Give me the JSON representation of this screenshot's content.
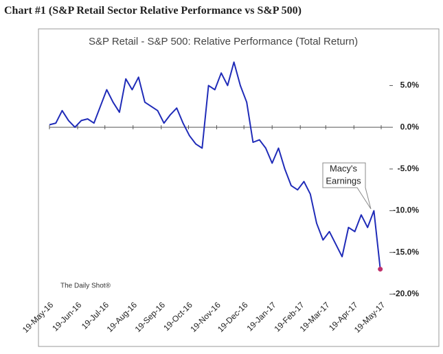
{
  "header": {
    "title": "Chart #1 (S&P Retail Sector Relative Performance vs S&P 500)"
  },
  "chart_data": {
    "type": "line",
    "title": "S&P Retail - S&P 500:  Relative Performance (Total Return)",
    "source": "The Daily Shot®",
    "annotation": [
      "Macy's",
      "Earnings"
    ],
    "x": [
      "2016-05-19",
      "2016-05-26",
      "2016-06-02",
      "2016-06-09",
      "2016-06-16",
      "2016-06-23",
      "2016-06-30",
      "2016-07-07",
      "2016-07-14",
      "2016-07-21",
      "2016-07-28",
      "2016-08-04",
      "2016-08-11",
      "2016-08-18",
      "2016-08-25",
      "2016-09-01",
      "2016-09-08",
      "2016-09-15",
      "2016-09-22",
      "2016-09-29",
      "2016-10-06",
      "2016-10-13",
      "2016-10-20",
      "2016-10-27",
      "2016-11-03",
      "2016-11-10",
      "2016-11-17",
      "2016-11-24",
      "2016-12-01",
      "2016-12-08",
      "2016-12-15",
      "2016-12-22",
      "2016-12-29",
      "2017-01-05",
      "2017-01-12",
      "2017-01-19",
      "2017-01-26",
      "2017-02-02",
      "2017-02-09",
      "2017-02-16",
      "2017-02-23",
      "2017-03-02",
      "2017-03-09",
      "2017-03-16",
      "2017-03-23",
      "2017-03-30",
      "2017-04-06",
      "2017-04-13",
      "2017-04-20",
      "2017-04-27",
      "2017-05-04",
      "2017-05-11",
      "2017-05-18"
    ],
    "series": [
      {
        "name": "S&P Retail - S&P 500",
        "color": "#1f2bb8",
        "values": [
          0.3,
          0.5,
          2.0,
          0.8,
          0.0,
          0.8,
          1.0,
          0.5,
          2.5,
          4.5,
          3.0,
          1.8,
          5.8,
          4.5,
          6.0,
          3.0,
          2.5,
          2.0,
          0.5,
          1.5,
          2.3,
          0.5,
          -1.0,
          -2.0,
          -2.5,
          5.0,
          4.5,
          6.5,
          5.0,
          7.8,
          5.0,
          3.0,
          -1.8,
          -1.5,
          -2.5,
          -4.3,
          -2.5,
          -5.0,
          -7.0,
          -7.5,
          -6.5,
          -8.0,
          -11.5,
          -13.5,
          -12.5,
          -14.0,
          -15.5,
          -12.0,
          -12.5,
          -10.5,
          -12.0,
          -10.0,
          -17.0
        ]
      }
    ],
    "end_marker_color": "#c0306a",
    "xlim": [
      "2016-05-19",
      "2017-05-19"
    ],
    "xticks": [
      {
        "value": "2016-05-19",
        "label": "19-May-16"
      },
      {
        "value": "2016-06-19",
        "label": "19-Jun-16"
      },
      {
        "value": "2016-07-19",
        "label": "19-Jul-16"
      },
      {
        "value": "2016-08-19",
        "label": "19-Aug-16"
      },
      {
        "value": "2016-09-19",
        "label": "19-Sep-16"
      },
      {
        "value": "2016-10-19",
        "label": "19-Oct-16"
      },
      {
        "value": "2016-11-19",
        "label": "19-Nov-16"
      },
      {
        "value": "2016-12-19",
        "label": "19-Dec-16"
      },
      {
        "value": "2017-01-19",
        "label": "19-Jan-17"
      },
      {
        "value": "2017-02-19",
        "label": "19-Feb-17"
      },
      {
        "value": "2017-03-19",
        "label": "19-Mar-17"
      },
      {
        "value": "2017-04-19",
        "label": "19-Apr-17"
      },
      {
        "value": "2017-05-19",
        "label": "19-May-17"
      }
    ],
    "ylim": [
      -20,
      8
    ],
    "yticks": [
      {
        "value": 5,
        "label": "5.0%"
      },
      {
        "value": 0,
        "label": "0.0%"
      },
      {
        "value": -5,
        "label": "-5.0%"
      },
      {
        "value": -10,
        "label": "-10.0%"
      },
      {
        "value": -15,
        "label": "-15.0%"
      },
      {
        "value": -20,
        "label": "-20.0%"
      }
    ]
  }
}
